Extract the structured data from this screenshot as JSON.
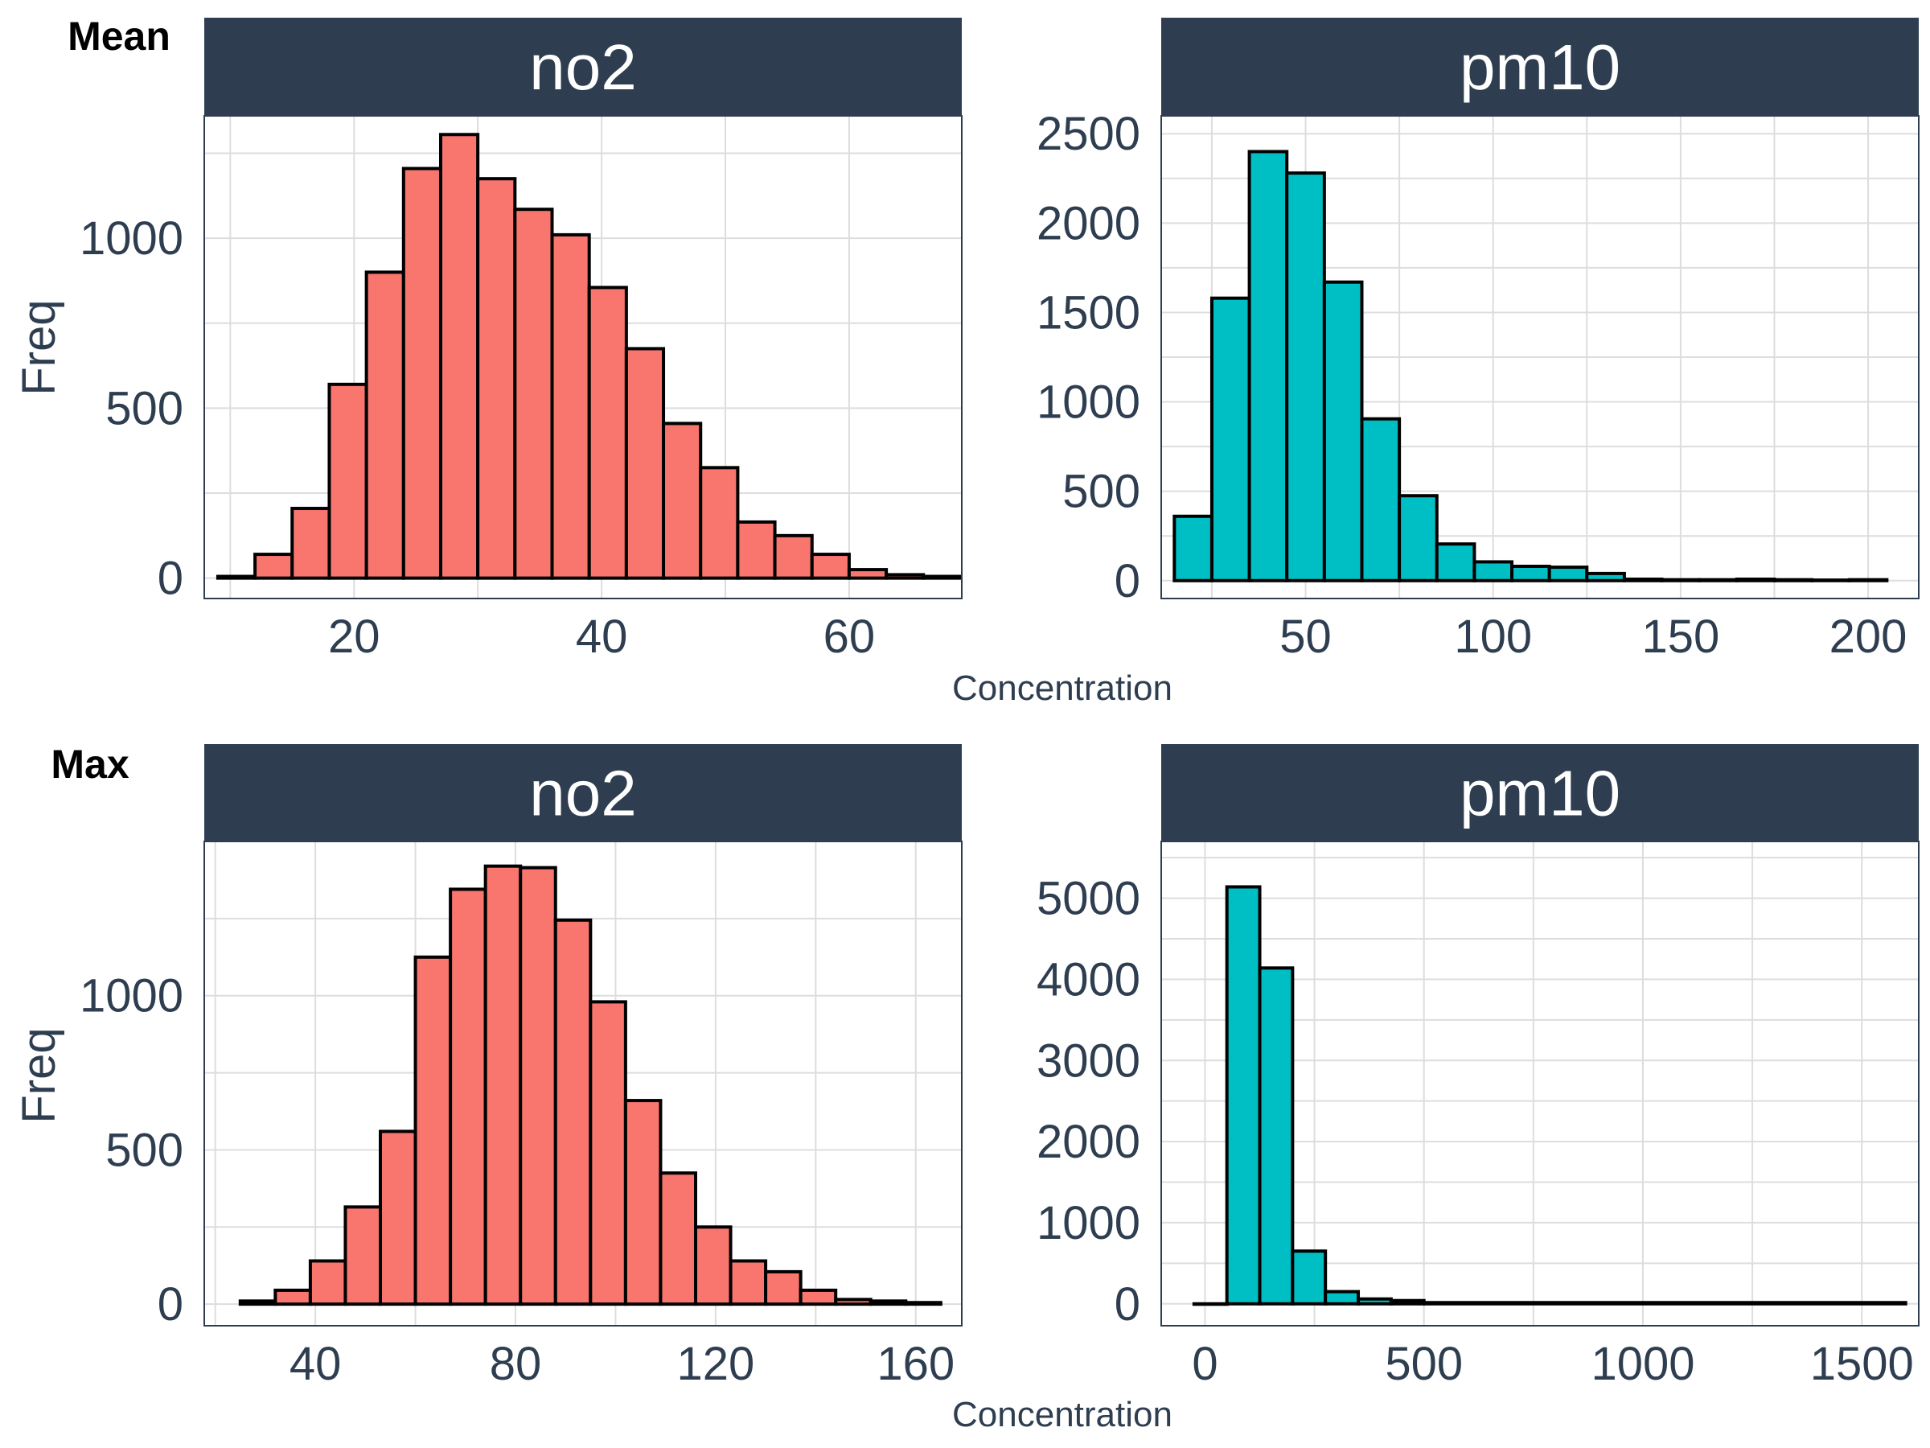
{
  "colors": {
    "no2_fill": "#F8766D",
    "pm10_fill": "#00BFC4",
    "strip_bg": "#2E3E50",
    "strip_text": "#FFFFFF",
    "text": "#2E3E50",
    "grid": "#DDDDDD",
    "bar_outline": "#000000"
  },
  "labels": {
    "row_mean": "Mean",
    "row_max": "Max",
    "xlabel": "Concentration",
    "ylabel": "Freq"
  },
  "chart_data": [
    {
      "type": "bar",
      "row": "Mean",
      "panel": "no2",
      "xlabel": "Concentration",
      "ylabel": "Freq",
      "xlim": [
        7.9,
        69.1
      ],
      "ylim": [
        -60,
        1360
      ],
      "xticks": [
        20,
        40,
        60
      ],
      "yticks": [
        0,
        500,
        1000
      ],
      "grid": true,
      "bin_edges": [
        9,
        12,
        15,
        18,
        21,
        24,
        27,
        30,
        33,
        36,
        39,
        42,
        45,
        48,
        51,
        54,
        57,
        60,
        63,
        66,
        69
      ],
      "values": [
        5,
        70,
        205,
        570,
        900,
        1205,
        1305,
        1175,
        1085,
        1010,
        855,
        675,
        455,
        325,
        165,
        125,
        70,
        25,
        10,
        5
      ]
    },
    {
      "type": "bar",
      "row": "Mean",
      "panel": "pm10",
      "xlabel": "Concentration",
      "ylabel": "Freq",
      "xlim": [
        11.5,
        213.5
      ],
      "ylim": [
        -100,
        2600
      ],
      "xticks": [
        50,
        100,
        150,
        200
      ],
      "yticks": [
        0,
        500,
        1000,
        1500,
        2000,
        2500
      ],
      "grid": true,
      "bin_edges": [
        15,
        25,
        35,
        45,
        55,
        65,
        75,
        85,
        95,
        105,
        115,
        125,
        135,
        145,
        155,
        165,
        175,
        185,
        195,
        205
      ],
      "values": [
        360,
        1580,
        2400,
        2280,
        1670,
        905,
        475,
        205,
        105,
        80,
        75,
        40,
        8,
        5,
        5,
        8,
        5,
        3,
        5
      ]
    },
    {
      "type": "bar",
      "row": "Max",
      "panel": "no2",
      "xlabel": "Concentration",
      "ylabel": "Freq",
      "xlim": [
        17.8,
        169.2
      ],
      "ylim": [
        -70,
        1500
      ],
      "xticks": [
        40,
        80,
        120,
        160
      ],
      "yticks": [
        0,
        500,
        1000
      ],
      "grid": true,
      "bin_edges": [
        25,
        32,
        39,
        46,
        53,
        60,
        67,
        74,
        81,
        88,
        95,
        102,
        109,
        116,
        123,
        130,
        137,
        144,
        151,
        158,
        165
      ],
      "values": [
        10,
        45,
        140,
        315,
        560,
        1125,
        1345,
        1420,
        1415,
        1245,
        980,
        660,
        425,
        250,
        140,
        105,
        45,
        15,
        10,
        5
      ]
    },
    {
      "type": "bar",
      "row": "Max",
      "panel": "pm10",
      "xlabel": "Concentration",
      "ylabel": "Freq",
      "xlim": [
        -100,
        1630
      ],
      "ylim": [
        -270,
        5700
      ],
      "xticks": [
        0,
        500,
        1000,
        1500
      ],
      "yticks": [
        0,
        1000,
        2000,
        3000,
        4000,
        5000
      ],
      "grid": true,
      "bin_edges": [
        -25,
        50,
        125,
        200,
        275,
        350,
        425,
        500,
        1600
      ],
      "values": [
        0,
        5140,
        4140,
        650,
        150,
        60,
        40,
        15
      ]
    }
  ]
}
